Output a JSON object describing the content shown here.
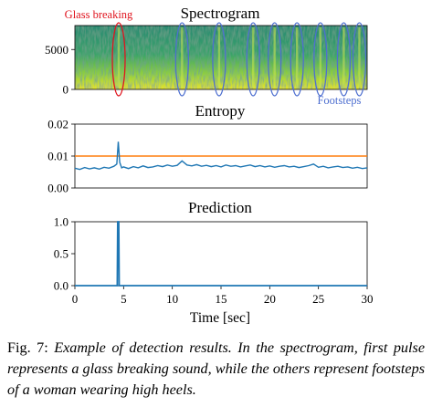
{
  "chart_data": [
    {
      "type": "heatmap",
      "title": "Spectrogram",
      "xlim": [
        0,
        30
      ],
      "ylim": [
        0,
        8000
      ],
      "y_ticks": [
        "0",
        "5000"
      ],
      "y_tick_values": [
        0,
        5000
      ],
      "colormap": [
        "#440154",
        "#2a788e",
        "#22a884",
        "#7ad151",
        "#fde725"
      ],
      "annotations": [
        {
          "label": "Glass breaking",
          "color": "#e0141e",
          "times": [
            4.5
          ]
        },
        {
          "label": "Footsteps",
          "color": "#4e6fd0",
          "times": [
            11,
            14.8,
            18.3,
            20.5,
            22.8,
            25.2,
            27.6,
            29.2
          ]
        }
      ]
    },
    {
      "type": "line",
      "title": "Entropy",
      "xlim": [
        0,
        30
      ],
      "ylim": [
        0,
        0.02
      ],
      "y_ticks": [
        "0.00",
        "0.01",
        "0.02"
      ],
      "y_tick_values": [
        0,
        0.01,
        0.02
      ],
      "threshold": {
        "value": 0.01,
        "color": "#ff7f0e"
      },
      "series": [
        {
          "color": "#1f77b4",
          "x": [
            0,
            0.5,
            1,
            1.5,
            2,
            2.5,
            3,
            3.5,
            4,
            4.3,
            4.45,
            4.6,
            4.8,
            5,
            5.5,
            6,
            6.5,
            7,
            7.5,
            8,
            8.5,
            9,
            9.5,
            10,
            10.5,
            11,
            11.5,
            12,
            12.5,
            13,
            13.5,
            14,
            14.5,
            15,
            15.5,
            16,
            16.5,
            17,
            17.5,
            18,
            18.5,
            19,
            19.5,
            20,
            20.5,
            21,
            21.5,
            22,
            22.5,
            23,
            23.5,
            24,
            24.5,
            25,
            25.5,
            26,
            26.5,
            27,
            27.5,
            28,
            28.5,
            29,
            29.5,
            30
          ],
          "values": [
            0.0062,
            0.0058,
            0.0064,
            0.006,
            0.0063,
            0.0059,
            0.0065,
            0.0062,
            0.0068,
            0.0075,
            0.0145,
            0.008,
            0.0063,
            0.0066,
            0.0061,
            0.0067,
            0.0063,
            0.0069,
            0.0064,
            0.0066,
            0.007,
            0.0067,
            0.0072,
            0.0068,
            0.0071,
            0.0085,
            0.0072,
            0.0069,
            0.0073,
            0.0068,
            0.0071,
            0.0067,
            0.007,
            0.0066,
            0.0072,
            0.0068,
            0.007,
            0.0066,
            0.0069,
            0.0072,
            0.0067,
            0.007,
            0.0066,
            0.0069,
            0.0065,
            0.0068,
            0.007,
            0.0066,
            0.0068,
            0.0064,
            0.0067,
            0.007,
            0.0075,
            0.0065,
            0.0068,
            0.0063,
            0.0066,
            0.0068,
            0.0064,
            0.0066,
            0.0062,
            0.0065,
            0.0061,
            0.0063
          ]
        }
      ]
    },
    {
      "type": "line",
      "title": "Prediction",
      "xlim": [
        0,
        30
      ],
      "ylim": [
        0,
        1
      ],
      "y_ticks": [
        "0.0",
        "0.5",
        "1.0"
      ],
      "y_tick_values": [
        0,
        0.5,
        1
      ],
      "xlabel": "Time [sec]",
      "x_ticks": [
        "0",
        "5",
        "10",
        "15",
        "20",
        "25",
        "30"
      ],
      "x_tick_values": [
        0,
        5,
        10,
        15,
        20,
        25,
        30
      ],
      "series": [
        {
          "color": "#1f77b4",
          "x": [
            0,
            4.35,
            4.4,
            4.5,
            4.55,
            4.6,
            30
          ],
          "values": [
            0,
            0,
            1,
            1,
            0,
            0,
            0
          ]
        }
      ]
    }
  ],
  "caption": {
    "label": "Fig. 7:",
    "text": "Example of detection results. In the spectrogram, first pulse represents a glass breaking sound, while the others represent footsteps of a woman wearing high heels."
  }
}
